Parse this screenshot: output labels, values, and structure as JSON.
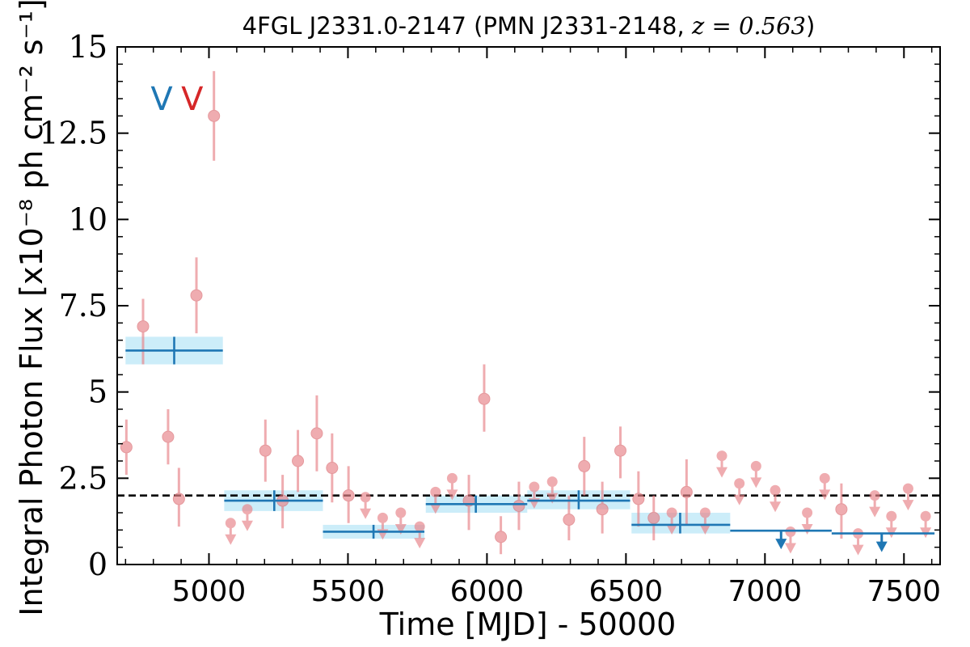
{
  "chart_data": {
    "type": "scatter",
    "title_text": "4FGL J2331.0-2147 (PMN J2331-2148, ",
    "title_math": "z = 0.563",
    "title_close": ")",
    "xlabel": "Time [MJD] - 50000",
    "ylabel": "Integral Photon Flux [x10⁻⁸ ph cm⁻² s⁻¹]",
    "xlim": [
      4670,
      7630
    ],
    "ylim": [
      0,
      15
    ],
    "xticks": [
      5000,
      5500,
      6000,
      6500,
      7000,
      7500
    ],
    "xtick_labels": [
      "5000",
      "5500",
      "6000",
      "6500",
      "7000",
      "7500"
    ],
    "yticks": [
      0,
      2.5,
      5,
      7.5,
      10,
      12.5,
      15
    ],
    "ytick_labels": [
      "0",
      "2.5",
      "5",
      "7.5",
      "10",
      "12.5",
      "15"
    ],
    "hline": 2.0,
    "markers": [
      {
        "label": "V",
        "x": 4830,
        "y": 13.5,
        "color": "#1f77b4"
      },
      {
        "label": "V",
        "x": 4940,
        "y": 13.5,
        "color": "#d62728"
      }
    ],
    "colors": {
      "short": "#e8868b",
      "long": "#1f77b4",
      "band": "#bfe8f8"
    },
    "short_bins": [
      {
        "x": 4703,
        "y": 3.4,
        "lo": 2.6,
        "hi": 4.2
      },
      {
        "x": 4763,
        "y": 6.9,
        "lo": 5.8,
        "hi": 7.7
      },
      {
        "x": 4853,
        "y": 3.7,
        "lo": 2.9,
        "hi": 4.5
      },
      {
        "x": 4892,
        "y": 1.9,
        "lo": 1.1,
        "hi": 2.8
      },
      {
        "x": 4955,
        "y": 7.8,
        "lo": 6.7,
        "hi": 8.9
      },
      {
        "x": 5018,
        "y": 13.0,
        "lo": 11.7,
        "hi": 14.3
      },
      {
        "x": 5078,
        "y": 1.2,
        "ul": true
      },
      {
        "x": 5138,
        "y": 1.6,
        "ul": true
      },
      {
        "x": 5203,
        "y": 3.3,
        "lo": 2.4,
        "hi": 4.2
      },
      {
        "x": 5265,
        "y": 1.85,
        "lo": 1.05,
        "hi": 2.6
      },
      {
        "x": 5320,
        "y": 3.0,
        "lo": 2.1,
        "hi": 3.9
      },
      {
        "x": 5388,
        "y": 3.8,
        "lo": 2.7,
        "hi": 4.9
      },
      {
        "x": 5443,
        "y": 2.8,
        "lo": 1.8,
        "hi": 3.8
      },
      {
        "x": 5502,
        "y": 2.0,
        "lo": 1.2,
        "hi": 2.85
      },
      {
        "x": 5563,
        "y": 1.95,
        "ul": true
      },
      {
        "x": 5625,
        "y": 1.35,
        "ul": true
      },
      {
        "x": 5690,
        "y": 1.5,
        "ul": true
      },
      {
        "x": 5758,
        "y": 1.1,
        "ul": true
      },
      {
        "x": 5815,
        "y": 2.1,
        "ul": true
      },
      {
        "x": 5875,
        "y": 2.5,
        "ul": true
      },
      {
        "x": 5935,
        "y": 1.85,
        "lo": 1.0,
        "hi": 2.6
      },
      {
        "x": 5990,
        "y": 4.8,
        "lo": 3.85,
        "hi": 5.8
      },
      {
        "x": 6050,
        "y": 0.8,
        "lo": 0.3,
        "hi": 1.4
      },
      {
        "x": 6115,
        "y": 1.7,
        "lo": 1.0,
        "hi": 2.4
      },
      {
        "x": 6170,
        "y": 2.25,
        "ul": true
      },
      {
        "x": 6235,
        "y": 2.4,
        "ul": true
      },
      {
        "x": 6295,
        "y": 1.3,
        "lo": 0.7,
        "hi": 2.0
      },
      {
        "x": 6350,
        "y": 2.85,
        "lo": 2.0,
        "hi": 3.7
      },
      {
        "x": 6415,
        "y": 1.6,
        "lo": 0.9,
        "hi": 2.4
      },
      {
        "x": 6480,
        "y": 3.3,
        "lo": 2.5,
        "hi": 4.0
      },
      {
        "x": 6545,
        "y": 1.9,
        "lo": 1.1,
        "hi": 2.7
      },
      {
        "x": 6600,
        "y": 1.35,
        "lo": 0.7,
        "hi": 2.0
      },
      {
        "x": 6665,
        "y": 1.5,
        "ul": true
      },
      {
        "x": 6718,
        "y": 2.1,
        "lo": 1.15,
        "hi": 3.05
      },
      {
        "x": 6785,
        "y": 1.5,
        "ul": true
      },
      {
        "x": 6845,
        "y": 3.15,
        "ul": true
      },
      {
        "x": 6908,
        "y": 2.35,
        "ul": true
      },
      {
        "x": 6968,
        "y": 2.85,
        "ul": true
      },
      {
        "x": 7037,
        "y": 2.15,
        "ul": true
      },
      {
        "x": 7092,
        "y": 0.95,
        "ul": true
      },
      {
        "x": 7152,
        "y": 1.5,
        "ul": true
      },
      {
        "x": 7215,
        "y": 2.5,
        "ul": true
      },
      {
        "x": 7275,
        "y": 1.6,
        "lo": 0.75,
        "hi": 2.35
      },
      {
        "x": 7335,
        "y": 0.9,
        "ul": true
      },
      {
        "x": 7395,
        "y": 2.0,
        "ul": true
      },
      {
        "x": 7455,
        "y": 1.4,
        "ul": true
      },
      {
        "x": 7515,
        "y": 2.2,
        "ul": true
      },
      {
        "x": 7578,
        "y": 1.4,
        "ul": true
      }
    ],
    "long_bins": [
      {
        "x0": 4700,
        "x1": 5050,
        "xc": 4875,
        "y": 6.2,
        "lo": 5.8,
        "hi": 6.6,
        "ul": false
      },
      {
        "x0": 5055,
        "x1": 5410,
        "xc": 5235,
        "y": 1.85,
        "lo": 1.55,
        "hi": 2.15,
        "ul": false
      },
      {
        "x0": 5410,
        "x1": 5775,
        "xc": 5592,
        "y": 0.95,
        "lo": 0.75,
        "hi": 1.15,
        "ul": false
      },
      {
        "x0": 5780,
        "x1": 6145,
        "xc": 5960,
        "y": 1.75,
        "lo": 1.5,
        "hi": 2.0,
        "ul": false
      },
      {
        "x0": 6145,
        "x1": 6515,
        "xc": 6330,
        "y": 1.85,
        "lo": 1.6,
        "hi": 2.15,
        "ul": false
      },
      {
        "x0": 6520,
        "x1": 6875,
        "xc": 6695,
        "y": 1.15,
        "lo": 0.9,
        "hi": 1.5,
        "ul": false
      },
      {
        "x0": 6875,
        "x1": 7240,
        "xc": 7058,
        "y": 0.98,
        "ul": true
      },
      {
        "x0": 7240,
        "x1": 7610,
        "xc": 7420,
        "y": 0.9,
        "ul": true
      }
    ]
  }
}
